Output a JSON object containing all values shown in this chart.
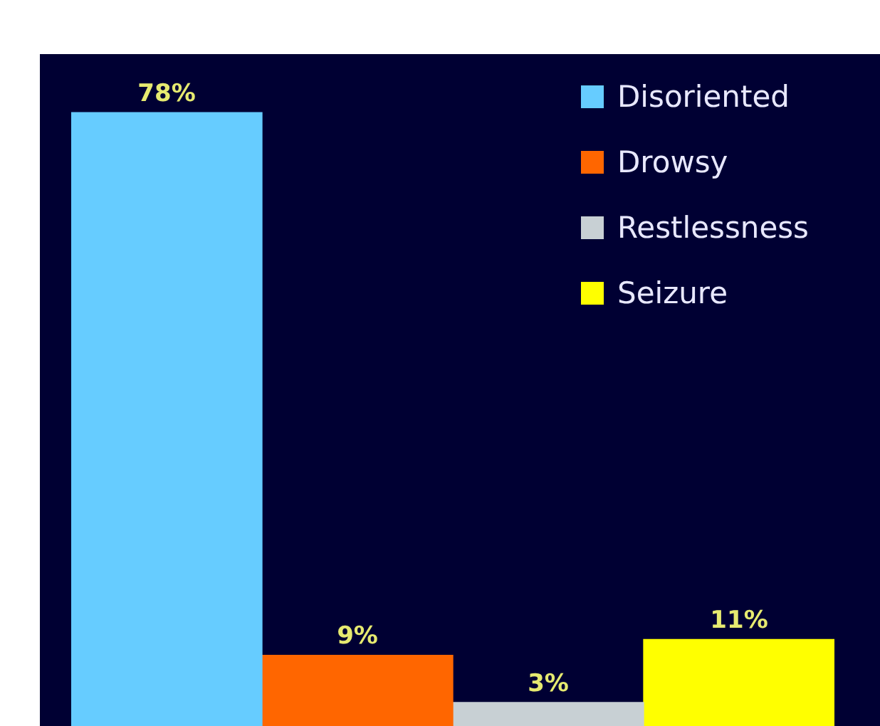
{
  "chart_data": {
    "type": "bar",
    "categories": [
      null
    ],
    "series": [
      {
        "name": "Disoriented",
        "color": "#66ccff",
        "values": [
          78
        ],
        "value_labels": [
          "78%"
        ]
      },
      {
        "name": "Drowsy",
        "color": "#ff6600",
        "values": [
          9
        ],
        "value_labels": [
          "9%"
        ]
      },
      {
        "name": "Restlessness",
        "color": "#c8d0d4",
        "values": [
          3
        ],
        "value_labels": [
          "3%"
        ]
      },
      {
        "name": "Seizure",
        "color": "#ffff00",
        "values": [
          11
        ],
        "value_labels": [
          "11%"
        ]
      }
    ],
    "tick_labels": false,
    "legend": "top right"
  }
}
